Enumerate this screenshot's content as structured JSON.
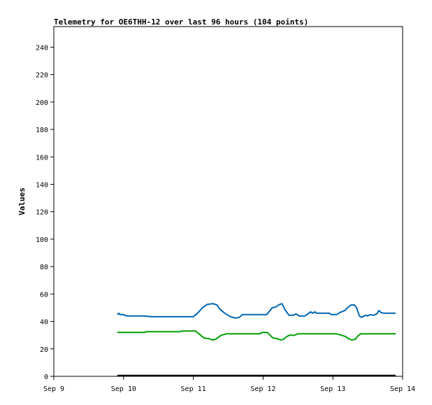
{
  "chart_data": {
    "type": "line",
    "title": "Telemetry for OE6THH-12 over last 96 hours (104 points)",
    "xlabel": "",
    "ylabel": "Values",
    "xlim": [
      0,
      5
    ],
    "ylim": [
      0,
      255
    ],
    "x_ticks": [
      {
        "x": 0,
        "label": "Sep 9"
      },
      {
        "x": 1,
        "label": "Sep 10"
      },
      {
        "x": 2,
        "label": "Sep 11"
      },
      {
        "x": 3,
        "label": "Sep 12"
      },
      {
        "x": 4,
        "label": "Sep 13"
      },
      {
        "x": 5,
        "label": "Sep 14"
      }
    ],
    "y_ticks": [
      0,
      20,
      40,
      60,
      80,
      100,
      120,
      140,
      160,
      180,
      200,
      220,
      240
    ],
    "grid": false,
    "series": [
      {
        "name": "",
        "color": "#0066b3",
        "points": [
          [
            0.91,
            45
          ],
          [
            0.93,
            46
          ],
          [
            0.95,
            45
          ],
          [
            1.0,
            45
          ],
          [
            1.04,
            44
          ],
          [
            1.3,
            44
          ],
          [
            1.4,
            43.5
          ],
          [
            1.8,
            43.5
          ],
          [
            2.0,
            43.5
          ],
          [
            2.06,
            46
          ],
          [
            2.13,
            50
          ],
          [
            2.2,
            52.5
          ],
          [
            2.28,
            53
          ],
          [
            2.34,
            52
          ],
          [
            2.38,
            49
          ],
          [
            2.45,
            46
          ],
          [
            2.53,
            43.5
          ],
          [
            2.6,
            42.5
          ],
          [
            2.66,
            43
          ],
          [
            2.7,
            45
          ],
          [
            2.9,
            45
          ],
          [
            3.05,
            45
          ],
          [
            3.1,
            48
          ],
          [
            3.13,
            50
          ],
          [
            3.18,
            50.5
          ],
          [
            3.22,
            52
          ],
          [
            3.27,
            53
          ],
          [
            3.31,
            49
          ],
          [
            3.37,
            44.5
          ],
          [
            3.43,
            44.5
          ],
          [
            3.47,
            45.5
          ],
          [
            3.52,
            44
          ],
          [
            3.6,
            44
          ],
          [
            3.64,
            45.5
          ],
          [
            3.68,
            47
          ],
          [
            3.71,
            46
          ],
          [
            3.74,
            47
          ],
          [
            3.77,
            46
          ],
          [
            3.95,
            46
          ],
          [
            3.98,
            45
          ],
          [
            4.05,
            45
          ],
          [
            4.1,
            46.5
          ],
          [
            4.17,
            48
          ],
          [
            4.21,
            50
          ],
          [
            4.26,
            52
          ],
          [
            4.31,
            52
          ],
          [
            4.34,
            50
          ],
          [
            4.38,
            44
          ],
          [
            4.41,
            43
          ],
          [
            4.47,
            44.5
          ],
          [
            4.5,
            44
          ],
          [
            4.53,
            45
          ],
          [
            4.58,
            44.5
          ],
          [
            4.63,
            45.5
          ],
          [
            4.66,
            48
          ],
          [
            4.69,
            46.5
          ],
          [
            4.73,
            46
          ],
          [
            4.9,
            46
          ]
        ]
      },
      {
        "name": "",
        "color": "#00a000",
        "points": [
          [
            0.91,
            32
          ],
          [
            1.3,
            32
          ],
          [
            1.32,
            32.5
          ],
          [
            1.8,
            32.5
          ],
          [
            1.83,
            33
          ],
          [
            2.03,
            33
          ],
          [
            2.08,
            31
          ],
          [
            2.15,
            28
          ],
          [
            2.22,
            27.5
          ],
          [
            2.27,
            26.5
          ],
          [
            2.32,
            27
          ],
          [
            2.36,
            28.5
          ],
          [
            2.4,
            30
          ],
          [
            2.48,
            31
          ],
          [
            2.95,
            31
          ],
          [
            2.99,
            32
          ],
          [
            3.06,
            32
          ],
          [
            3.1,
            30
          ],
          [
            3.14,
            28
          ],
          [
            3.2,
            27.5
          ],
          [
            3.25,
            26.5
          ],
          [
            3.29,
            27
          ],
          [
            3.34,
            29
          ],
          [
            3.38,
            30
          ],
          [
            3.45,
            30
          ],
          [
            3.5,
            31
          ],
          [
            4.05,
            31
          ],
          [
            4.12,
            30
          ],
          [
            4.18,
            29
          ],
          [
            4.22,
            27.5
          ],
          [
            4.27,
            26.5
          ],
          [
            4.32,
            27
          ],
          [
            4.36,
            29.5
          ],
          [
            4.4,
            31
          ],
          [
            4.9,
            31
          ]
        ]
      },
      {
        "name": "",
        "color": "#000000",
        "points": [
          [
            0.91,
            0.6
          ],
          [
            4.9,
            0.6
          ]
        ]
      }
    ]
  }
}
